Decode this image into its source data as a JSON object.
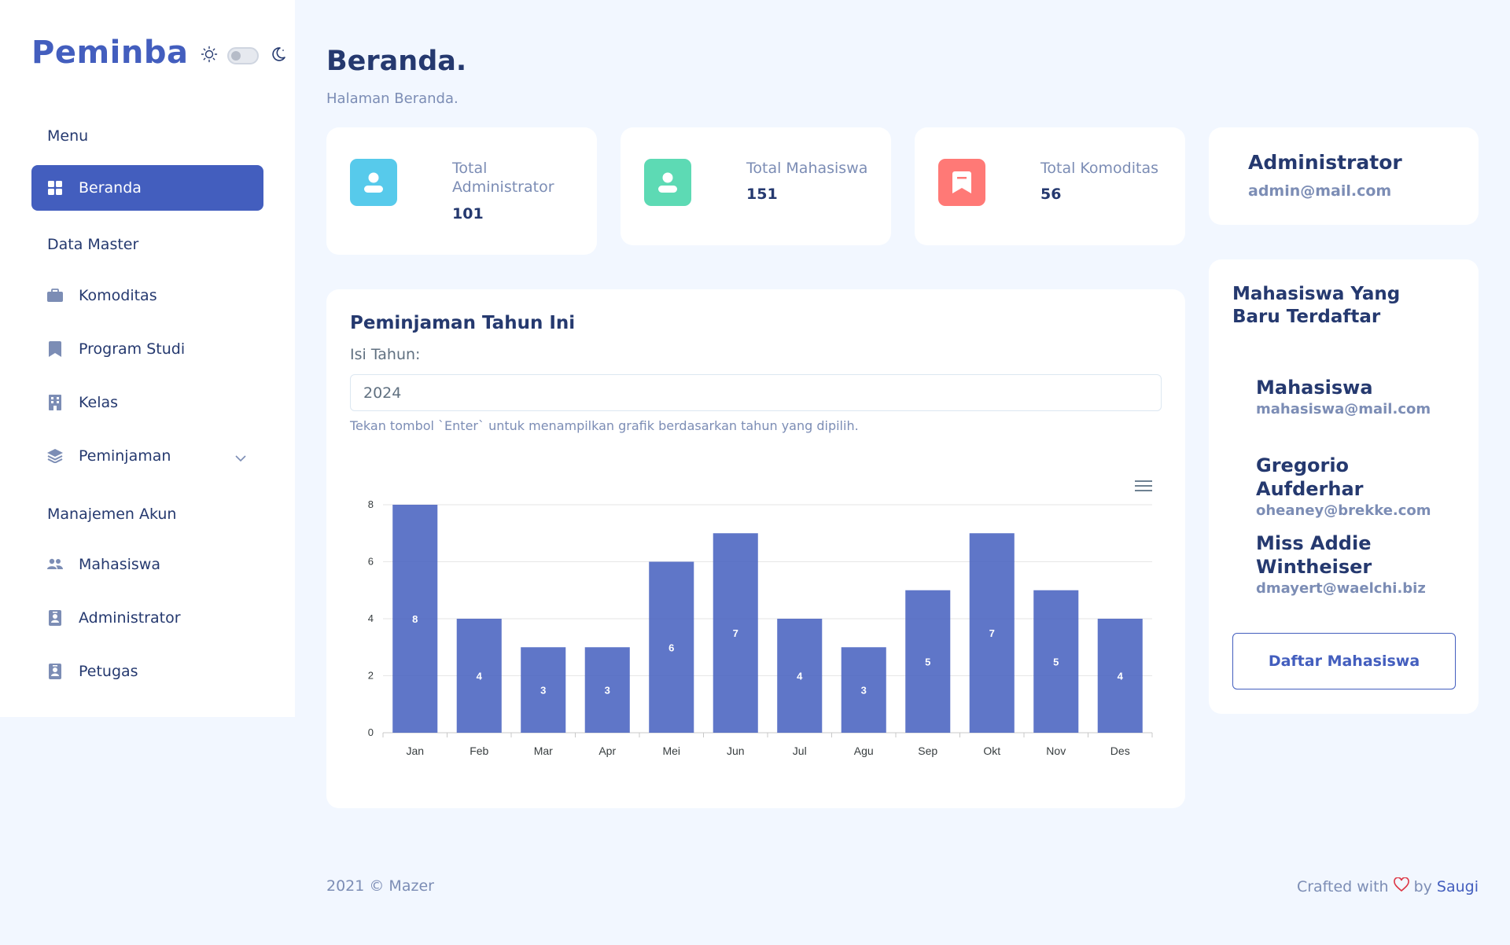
{
  "brand": "Peminba",
  "sidebar": {
    "sections": [
      {
        "title": "Menu"
      },
      {
        "title": "Data Master"
      },
      {
        "title": "Manajemen Akun"
      }
    ],
    "items": [
      {
        "label": "Beranda",
        "icon": "grid-icon"
      },
      {
        "label": "Komoditas",
        "icon": "briefcase-icon"
      },
      {
        "label": "Program Studi",
        "icon": "bookmark-icon"
      },
      {
        "label": "Kelas",
        "icon": "building-icon"
      },
      {
        "label": "Peminjaman",
        "icon": "layers-icon"
      },
      {
        "label": "Mahasiswa",
        "icon": "people-icon"
      },
      {
        "label": "Administrator",
        "icon": "person-badge-icon"
      },
      {
        "label": "Petugas",
        "icon": "person-badge-icon"
      }
    ]
  },
  "page": {
    "title": "Beranda.",
    "subtitle": "Halaman Beranda."
  },
  "stats": [
    {
      "label": "Total Administrator",
      "value": "101",
      "color": "#57caeb"
    },
    {
      "label": "Total Mahasiswa",
      "value": "151",
      "color": "#5ddab4"
    },
    {
      "label": "Total Komoditas",
      "value": "56",
      "color": "#ff7976"
    }
  ],
  "profile": {
    "name": "Administrator",
    "email": "admin@mail.com"
  },
  "chart_card": {
    "title": "Peminjaman Tahun Ini",
    "year_label": "Isi Tahun:",
    "year_value": "2024",
    "help": "Tekan tombol `Enter` untuk menampilkan grafik berdasarkan tahun yang dipilih."
  },
  "chart_data": {
    "type": "bar",
    "categories": [
      "Jan",
      "Feb",
      "Mar",
      "Apr",
      "Mei",
      "Jun",
      "Jul",
      "Agu",
      "Sep",
      "Okt",
      "Nov",
      "Des"
    ],
    "values": [
      8,
      4,
      3,
      3,
      6,
      7,
      4,
      3,
      5,
      7,
      5,
      4
    ],
    "ylim": [
      0,
      8
    ],
    "yticks": [
      0,
      2,
      4,
      6,
      8
    ],
    "grid": true,
    "bar_color": "#435ebe",
    "data_labels": true
  },
  "recent": {
    "title": "Mahasiswa Yang Baru Terdaftar",
    "items": [
      {
        "name": "Mahasiswa",
        "email": "mahasiswa@mail.com"
      },
      {
        "name": "Gregorio Aufderhar",
        "email": "oheaney@brekke.com"
      },
      {
        "name": "Miss Addie Wintheiser",
        "email": "dmayert@waelchi.biz"
      }
    ],
    "button": "Daftar Mahasiswa"
  },
  "footer": {
    "left": "2021 © Mazer",
    "crafted": "Crafted with",
    "by": "by",
    "author": "Saugi"
  }
}
